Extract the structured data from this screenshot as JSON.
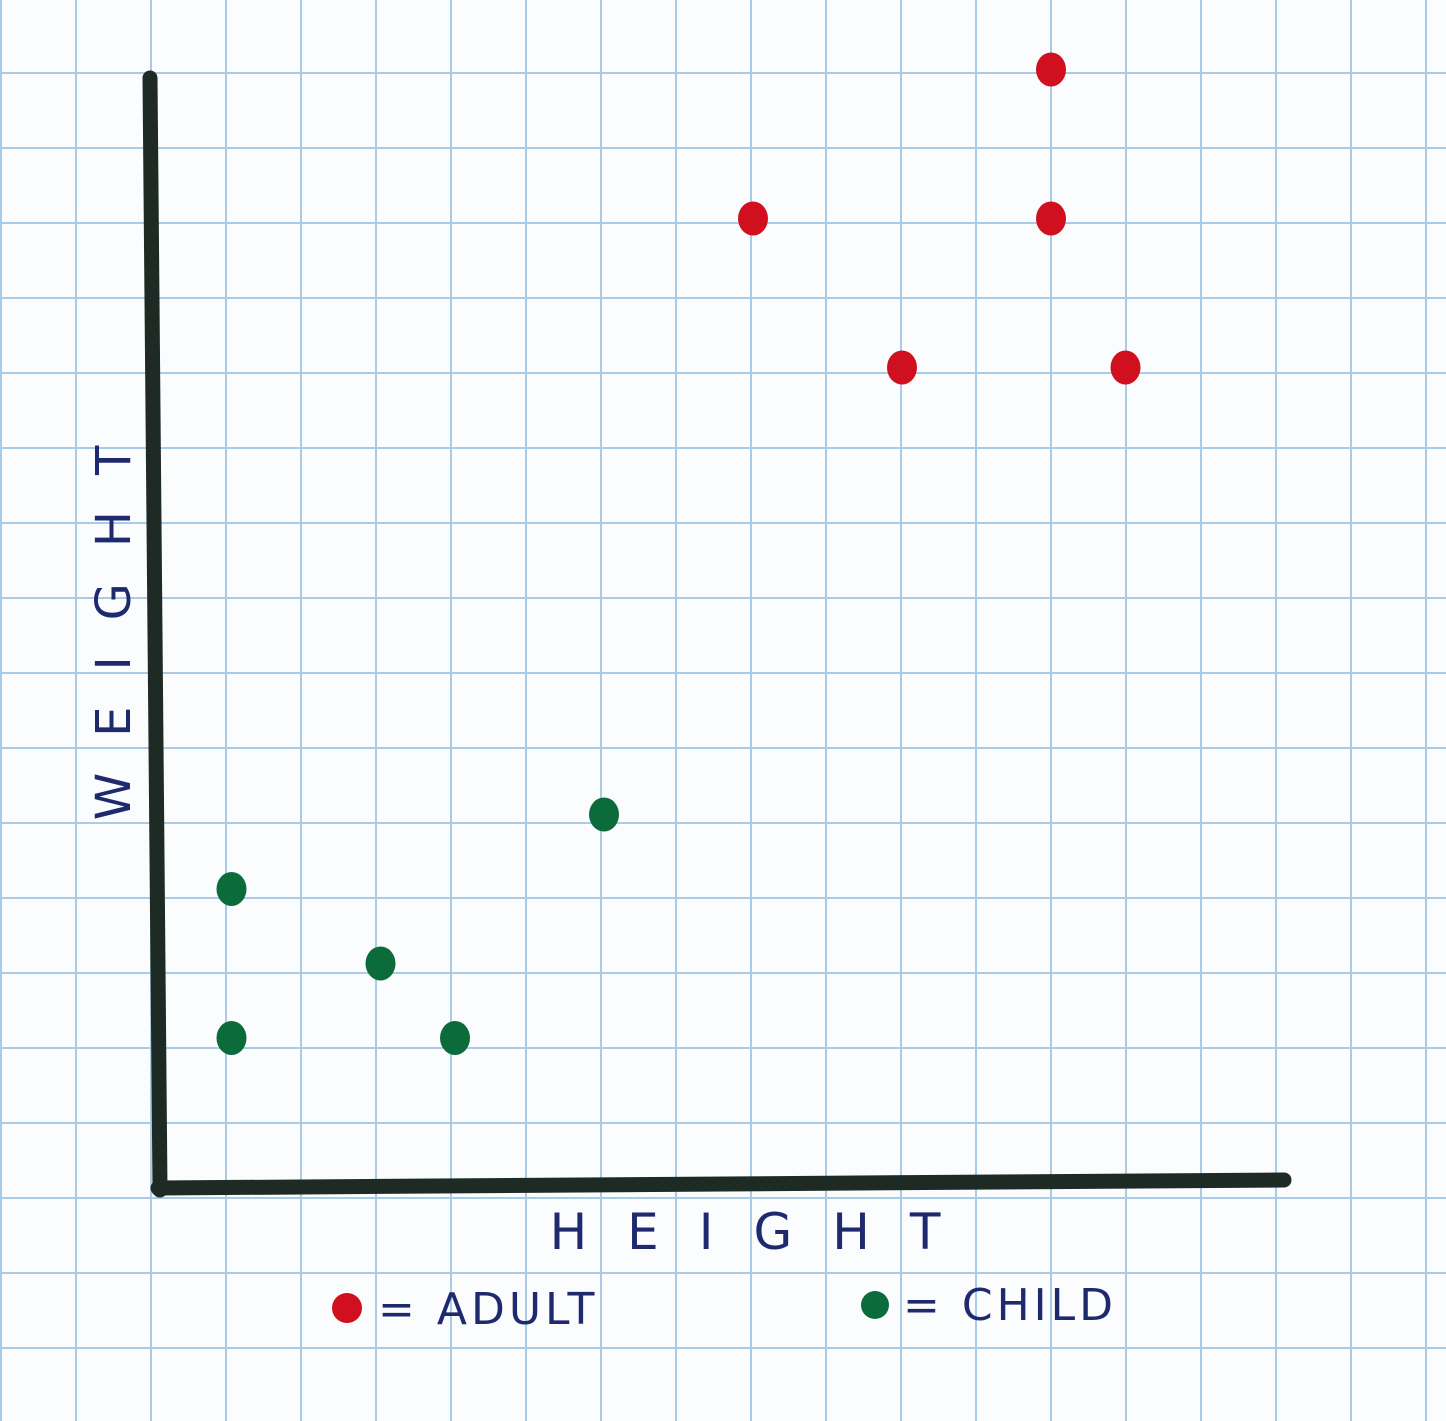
{
  "chart_data": {
    "type": "scatter",
    "title": "",
    "xlabel": "HEIGHT",
    "ylabel": "WEIGHT",
    "xlim": [
      0,
      15
    ],
    "ylim": [
      0,
      15
    ],
    "grid": true,
    "legend_position": "bottom",
    "series": [
      {
        "name": "ADULT",
        "legend_text": "= ADULT",
        "color": "#d0101e",
        "x": [
          8,
          10,
          12,
          12,
          13
        ],
        "y": [
          13,
          11,
          15,
          13,
          11
        ]
      },
      {
        "name": "CHILD",
        "legend_text": "= CHILD",
        "color": "#0b6b3a",
        "x": [
          1,
          1,
          3,
          4,
          6
        ],
        "y": [
          4,
          2,
          3,
          2,
          5
        ]
      }
    ]
  }
}
